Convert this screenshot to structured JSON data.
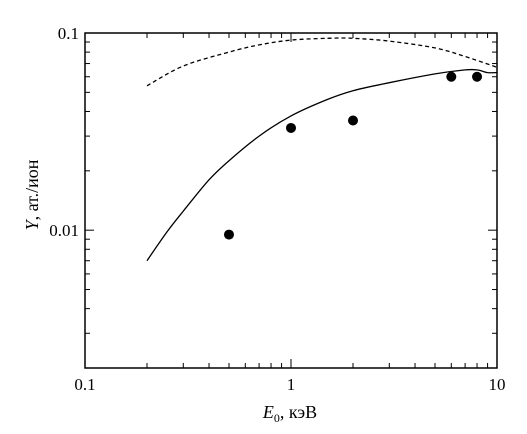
{
  "chart_data": {
    "type": "line",
    "title": "",
    "x_scale": "log",
    "y_scale": "log",
    "xlim": [
      0.1,
      10
    ],
    "ylim": [
      0.002,
      0.1
    ],
    "grid": false,
    "legend": "none",
    "xlabel": {
      "symbol": "E",
      "subscript": "0",
      "unit": ", кэВ"
    },
    "ylabel": {
      "symbol": "Y",
      "unit": ", ат./ион"
    },
    "x_ticks": [
      {
        "value": 0.1,
        "label": "0.1"
      },
      {
        "value": 1,
        "label": "1"
      },
      {
        "value": 10,
        "label": "10"
      }
    ],
    "y_ticks": [
      {
        "value": 0.01,
        "label": "0.01"
      },
      {
        "value": 0.1,
        "label": "0.1"
      }
    ],
    "series": [
      {
        "style": "dashed",
        "color": "#000000",
        "x": [
          0.2,
          0.3,
          0.5,
          0.7,
          1.0,
          1.5,
          2.0,
          3.0,
          5.0,
          7.0,
          10.0
        ],
        "y": [
          0.054,
          0.068,
          0.08,
          0.087,
          0.092,
          0.094,
          0.094,
          0.091,
          0.084,
          0.076,
          0.067
        ]
      },
      {
        "style": "solid",
        "color": "#000000",
        "x": [
          0.2,
          0.25,
          0.3,
          0.4,
          0.5,
          0.7,
          1.0,
          1.5,
          2.0,
          3.0,
          5.0,
          7.0,
          8.0,
          9.0,
          10.0
        ],
        "y": [
          0.007,
          0.0098,
          0.0125,
          0.018,
          0.0225,
          0.03,
          0.038,
          0.046,
          0.051,
          0.056,
          0.062,
          0.065,
          0.065,
          0.063,
          0.063
        ]
      },
      {
        "style": "markers",
        "color": "#000000",
        "x": [
          0.5,
          1.0,
          2.0,
          6.0,
          8.0
        ],
        "y": [
          0.0095,
          0.033,
          0.036,
          0.06,
          0.06
        ]
      }
    ]
  }
}
